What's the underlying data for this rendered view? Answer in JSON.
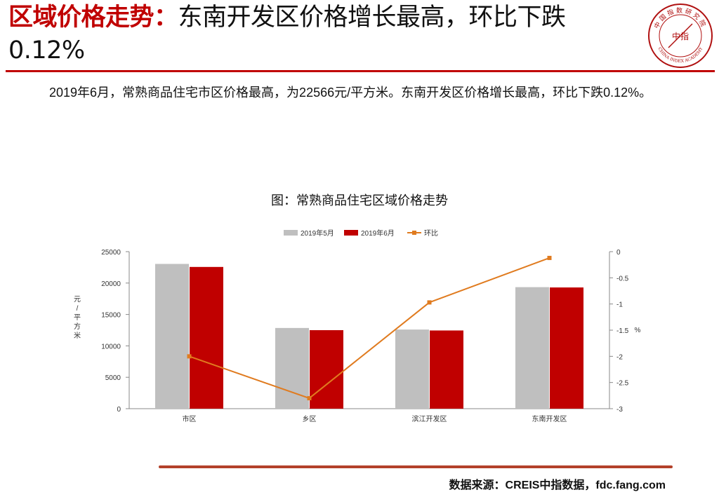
{
  "header": {
    "title_highlight": "区域价格走势：",
    "title_rest": "东南开发区价格增长最高，环比下跌0.12%",
    "logo_text_top": "中国指数研究院",
    "logo_text_center": "中指",
    "logo_text_bottom": "CHINA INDEX ACADEMY"
  },
  "summary": {
    "text": "2019年6月，常熟商品住宅市区价格最高，为22566元/平方米。东南开发区价格增长最高，环比下跌0.12%。"
  },
  "footer": {
    "source": "数据来源：CREIS中指数据，fdc.fang.com"
  },
  "colors": {
    "accent": "#c00000",
    "may_bar": "#bfbfbf",
    "june_bar": "#c00000",
    "mom_line": "#e07b1f"
  },
  "chart_data": {
    "type": "bar",
    "title": "图：常熟商品住宅区域价格走势",
    "categories": [
      "市区",
      "乡区",
      "滨江开发区",
      "东南开发区"
    ],
    "series": [
      {
        "name": "2019年5月",
        "type": "bar",
        "axis": "left",
        "values": [
          23050,
          12850,
          12600,
          19350
        ]
      },
      {
        "name": "2019年6月",
        "type": "bar",
        "axis": "left",
        "values": [
          22566,
          12500,
          12450,
          19300
        ]
      },
      {
        "name": "环比",
        "type": "line",
        "axis": "right",
        "values": [
          -2.0,
          -2.8,
          -0.97,
          -0.12
        ]
      }
    ],
    "ylabel": "元/平方米",
    "y2label": "%",
    "ylim": [
      0,
      25000
    ],
    "yticks": [
      "0",
      "5000",
      "10000",
      "15000",
      "20000",
      "25000"
    ],
    "y2lim": [
      -3,
      0
    ],
    "y2ticks": [
      "0",
      "-0.5",
      "-1",
      "-1.5",
      "-2",
      "-2.5",
      "-3"
    ],
    "legend_position": "top",
    "grid": false
  }
}
